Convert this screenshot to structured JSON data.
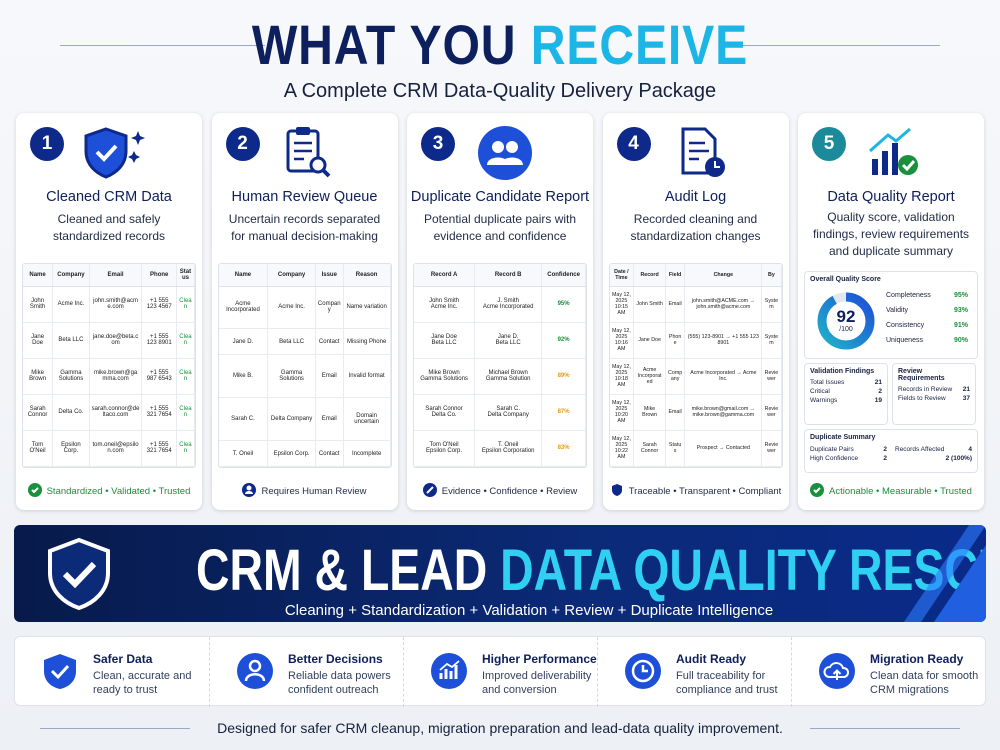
{
  "header": {
    "title_part1": "WHAT YOU",
    "title_part2": "RECEIVE",
    "subtitle": "A Complete CRM Data-Quality Delivery Package"
  },
  "cards": [
    {
      "number": "1",
      "title": "Cleaned CRM Data",
      "description": "Cleaned and safely standardized records",
      "table": {
        "columns": [
          "Name",
          "Company",
          "Email",
          "Phone",
          "Status"
        ],
        "rows": [
          [
            "John Smith",
            "Acme Inc.",
            "john.smith@acme.com",
            "+1 555 123 4567",
            "Clean"
          ],
          [
            "Jane Doe",
            "Beta LLC",
            "jane.doe@beta.com",
            "+1 555 123 8901",
            "Clean"
          ],
          [
            "Mike Brown",
            "Gamma Solutions",
            "mike.brown@gamma.com",
            "+1 555 987 6543",
            "Clean"
          ],
          [
            "Sarah Connor",
            "Delta Co.",
            "sarah.connor@deltaco.com",
            "+1 555 321 7654",
            "Clean"
          ],
          [
            "Tom O'Neil",
            "Epsilon Corp.",
            "tom.oneil@epsilon.com",
            "+1 555 321 7654",
            "Clean"
          ]
        ]
      },
      "footer": "Standardized • Validated • Trusted"
    },
    {
      "number": "2",
      "title": "Human Review Queue",
      "description": "Uncertain records separated for manual decision-making",
      "table": {
        "columns": [
          "Name",
          "Company",
          "Issue",
          "Reason"
        ],
        "rows": [
          [
            "Acme Incorporated",
            "Acme Inc.",
            "Company",
            "Name variation"
          ],
          [
            "Jane D.",
            "Beta LLC",
            "Contact",
            "Missing Phone"
          ],
          [
            "Mike B.",
            "Gamma Solutions",
            "Email",
            "Invalid format"
          ],
          [
            "Sarah C.",
            "Delta Company",
            "Email",
            "Domain uncertain"
          ],
          [
            "T. Oneil",
            "Epsilon Corp.",
            "Contact",
            "Incomplete"
          ]
        ]
      },
      "footer": "Requires Human Review"
    },
    {
      "number": "3",
      "title": "Duplicate Candidate Report",
      "description": "Potential duplicate pairs with evidence and confidence",
      "table": {
        "columns": [
          "Record A",
          "Record B",
          "Confidence"
        ],
        "rows": [
          [
            "John Smith\nAcme Inc.",
            "J. Smith\nAcme Incorporated",
            "95%"
          ],
          [
            "Jane Doe\nBeta LLC",
            "Jane D.\nBeta LLC",
            "92%"
          ],
          [
            "Mike Brown\nGamma Solutions",
            "Michael Brown\nGamma Solution",
            "89%"
          ],
          [
            "Sarah Connor\nDelta Co.",
            "Sarah C.\nDelta Company",
            "87%"
          ],
          [
            "Tom O'Neil\nEpsilon Corp.",
            "T. Oneil\nEpsilon Corporation",
            "83%"
          ]
        ],
        "row_colors": [
          "#1a8f3c",
          "#1a8f3c",
          "#e69a12",
          "#e69a12",
          "#e69a12"
        ]
      },
      "footer": "Evidence • Confidence • Review"
    },
    {
      "number": "4",
      "title": "Audit Log",
      "description": "Recorded cleaning and standardization changes",
      "table": {
        "columns": [
          "Date / Time",
          "Record",
          "Field",
          "Change",
          "By"
        ],
        "rows": [
          [
            "May 12, 2025\n10:15 AM",
            "John Smith",
            "Email",
            "john.smith@ACME.com → john.smith@acme.com",
            "System"
          ],
          [
            "May 12, 2025\n10:16 AM",
            "Jane Doe",
            "Phone",
            "(555) 123-8901 → +1 555 123 8901",
            "System"
          ],
          [
            "May 12, 2025\n10:18 AM",
            "Acme Incorporated",
            "Company",
            "Acme Incorporated → Acme Inc.",
            "Reviewer"
          ],
          [
            "May 12, 2025\n10:20 AM",
            "Mike Brown",
            "Email",
            "mike.brown@gmail.com → mike.brown@gamma.com",
            "Reviewer"
          ],
          [
            "May 12, 2025\n10:22 AM",
            "Sarah Connor",
            "Status",
            "Prospect → Contacted",
            "Reviewer"
          ]
        ]
      },
      "footer": "Traceable • Transparent • Compliant"
    },
    {
      "number": "5",
      "title": "Data Quality Report",
      "description": "Quality score, validation findings, review requirements and duplicate summary",
      "report": {
        "overall_title": "Overall Quality Score",
        "score": 92,
        "score_label": "/100",
        "metrics": [
          {
            "label": "Completeness",
            "value": "95%"
          },
          {
            "label": "Validity",
            "value": "93%"
          },
          {
            "label": "Consistency",
            "value": "91%"
          },
          {
            "label": "Uniqueness",
            "value": "90%"
          }
        ],
        "validation": {
          "title": "Validation Findings",
          "items": [
            {
              "label": "Total Issues",
              "value": "21"
            },
            {
              "label": "Critical",
              "value": "2"
            },
            {
              "label": "Warnings",
              "value": "19"
            }
          ]
        },
        "review": {
          "title": "Review Requirements",
          "items": [
            {
              "label": "Records in Review",
              "value": "21"
            },
            {
              "label": "Fields to Review",
              "value": "37"
            }
          ]
        },
        "duplicates": {
          "title": "Duplicate Summary",
          "items": [
            {
              "label": "Duplicate Pairs",
              "value": "2"
            },
            {
              "label": "Records Affected",
              "value": "4"
            },
            {
              "label": "High Confidence",
              "value": "2"
            },
            {
              "value": "2 (100%)"
            }
          ]
        }
      },
      "footer": "Actionable • Measurable • Trusted"
    }
  ],
  "banner": {
    "title_part1": "CRM & LEAD",
    "title_part2": "DATA QUALITY RESCUE",
    "subtitle": "Cleaning + Standardization + Validation + Review + Duplicate Intelligence"
  },
  "benefits": [
    {
      "title": "Safer Data",
      "description": "Clean, accurate and ready to trust"
    },
    {
      "title": "Better Decisions",
      "description": "Reliable data powers confident outreach"
    },
    {
      "title": "Higher Performance",
      "description": "Improved deliverability and conversion"
    },
    {
      "title": "Audit Ready",
      "description": "Full traceability for compliance and trust"
    },
    {
      "title": "Migration Ready",
      "description": "Clean data for smooth CRM migrations"
    }
  ],
  "footer": "Designed for safer CRM cleanup, migration preparation and lead-data quality improvement."
}
